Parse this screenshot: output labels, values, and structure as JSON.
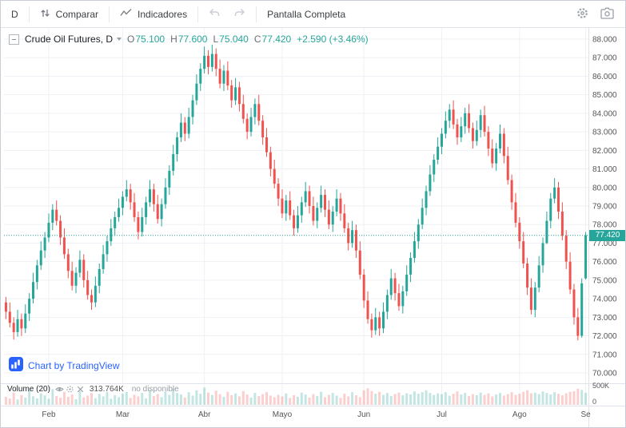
{
  "toolbar": {
    "interval": "D",
    "compare": "Comparar",
    "indicators": "Indicadores",
    "fullscreen": "Pantalla Completa"
  },
  "legend": {
    "title": "Crude Oil Futures, D",
    "open_label": "O",
    "open": "75.100",
    "high_label": "H",
    "high": "77.600",
    "low_label": "L",
    "low": "75.040",
    "close_label": "C",
    "close": "77.420",
    "change": "+2.590 (+3.46%)"
  },
  "attribution": "Chart by TradingView",
  "volume_pane": {
    "title": "Volume (20)",
    "value": "313.764K",
    "note": "no disponible"
  },
  "price_label": "77.420",
  "chart_data": {
    "type": "candlestick",
    "title": "Crude Oil Futures, D",
    "y_min": 70,
    "y_max": 88,
    "y_ticks": [
      88,
      87,
      86,
      85,
      84,
      83,
      82,
      81,
      80,
      79,
      78,
      77,
      76,
      75,
      74,
      73,
      72,
      71,
      70
    ],
    "x_ticks": [
      {
        "label": "Feb",
        "i": 11
      },
      {
        "label": "Mar",
        "i": 30
      },
      {
        "label": "Abr",
        "i": 51
      },
      {
        "label": "Mayo",
        "i": 71
      },
      {
        "label": "Jun",
        "i": 92
      },
      {
        "label": "Jul",
        "i": 112
      },
      {
        "label": "Ago",
        "i": 132
      },
      {
        "label": "Se",
        "i": 149
      }
    ],
    "current_price": 77.42,
    "vol_axis": {
      "max": 500,
      "ticks": [
        {
          "label": "500K",
          "v": 500
        },
        {
          "label": "0",
          "v": 0
        }
      ]
    },
    "colors": {
      "up": "#26a69a",
      "down": "#ef5350",
      "vol_up": "rgba(38,166,154,0.28)",
      "vol_down": "rgba(239,83,80,0.28)",
      "grid": "#eef1f5",
      "axis_text": "#555555",
      "accent": "#2962ff",
      "price_line": "#26a69a"
    },
    "candles": [
      [
        73.8,
        74.1,
        72.9,
        73.3
      ],
      [
        73.3,
        73.8,
        72.45,
        72.7
      ],
      [
        72.7,
        73.0,
        71.8,
        72.2
      ],
      [
        72.2,
        73.4,
        71.95,
        72.9
      ],
      [
        72.9,
        73.2,
        72.0,
        72.4
      ],
      [
        72.4,
        73.7,
        72.15,
        73.2
      ],
      [
        73.2,
        74.3,
        72.8,
        74.0
      ],
      [
        74.0,
        75.4,
        73.75,
        74.9
      ],
      [
        74.9,
        76.1,
        74.5,
        75.8
      ],
      [
        75.8,
        77.1,
        75.55,
        76.6
      ],
      [
        76.6,
        77.6,
        76.2,
        77.3
      ],
      [
        77.3,
        78.6,
        77.05,
        78.1
      ],
      [
        78.1,
        79.1,
        77.7,
        78.8
      ],
      [
        78.8,
        79.3,
        77.95,
        78.2
      ],
      [
        78.2,
        78.5,
        76.9,
        77.3
      ],
      [
        77.3,
        77.8,
        76.15,
        76.4
      ],
      [
        76.4,
        76.7,
        75.1,
        75.5
      ],
      [
        75.5,
        76.0,
        74.45,
        74.7
      ],
      [
        74.7,
        75.7,
        74.3,
        75.4
      ],
      [
        75.4,
        76.6,
        75.15,
        76.1
      ],
      [
        76.1,
        76.4,
        74.6,
        75.0
      ],
      [
        75.0,
        75.5,
        73.95,
        74.2
      ],
      [
        74.2,
        74.5,
        73.4,
        73.8
      ],
      [
        73.8,
        75.2,
        73.55,
        74.7
      ],
      [
        74.7,
        75.9,
        74.3,
        75.6
      ],
      [
        75.6,
        76.9,
        75.35,
        76.4
      ],
      [
        76.4,
        77.4,
        76.0,
        77.1
      ],
      [
        77.1,
        78.3,
        76.85,
        77.8
      ],
      [
        77.8,
        78.7,
        77.4,
        78.4
      ],
      [
        78.4,
        79.4,
        78.15,
        78.9
      ],
      [
        78.9,
        79.8,
        78.5,
        79.5
      ],
      [
        79.5,
        80.4,
        79.25,
        79.9
      ],
      [
        79.9,
        80.2,
        78.8,
        79.2
      ],
      [
        79.2,
        79.7,
        78.15,
        78.4
      ],
      [
        78.4,
        78.7,
        77.2,
        77.6
      ],
      [
        77.6,
        78.9,
        77.35,
        78.4
      ],
      [
        78.4,
        79.5,
        78.0,
        79.2
      ],
      [
        79.2,
        80.4,
        78.95,
        79.9
      ],
      [
        79.9,
        80.2,
        78.7,
        79.1
      ],
      [
        79.1,
        79.6,
        78.05,
        78.3
      ],
      [
        78.3,
        79.4,
        77.9,
        79.1
      ],
      [
        79.1,
        80.5,
        78.85,
        80.0
      ],
      [
        80.0,
        81.2,
        79.6,
        80.9
      ],
      [
        80.9,
        82.3,
        80.65,
        81.8
      ],
      [
        81.8,
        83.0,
        81.4,
        82.7
      ],
      [
        82.7,
        84.0,
        82.45,
        83.5
      ],
      [
        83.5,
        83.8,
        82.5,
        82.9
      ],
      [
        82.9,
        84.3,
        82.65,
        83.8
      ],
      [
        83.8,
        85.0,
        83.4,
        84.7
      ],
      [
        84.7,
        86.1,
        84.45,
        85.6
      ],
      [
        85.6,
        86.7,
        85.2,
        86.4
      ],
      [
        86.4,
        87.6,
        86.15,
        87.1
      ],
      [
        87.1,
        87.4,
        86.1,
        86.5
      ],
      [
        86.5,
        87.7,
        86.25,
        87.2
      ],
      [
        87.2,
        87.5,
        86.0,
        86.4
      ],
      [
        86.4,
        86.9,
        85.35,
        85.6
      ],
      [
        85.6,
        86.6,
        85.2,
        86.3
      ],
      [
        86.3,
        86.8,
        85.25,
        85.5
      ],
      [
        85.5,
        85.8,
        84.3,
        84.7
      ],
      [
        84.7,
        85.9,
        84.45,
        85.4
      ],
      [
        85.4,
        85.7,
        84.1,
        84.5
      ],
      [
        84.5,
        85.0,
        83.45,
        83.7
      ],
      [
        83.7,
        84.0,
        82.6,
        83.0
      ],
      [
        83.0,
        84.3,
        82.75,
        83.8
      ],
      [
        83.8,
        84.8,
        83.4,
        84.5
      ],
      [
        84.5,
        85.0,
        83.35,
        83.6
      ],
      [
        83.6,
        83.9,
        82.3,
        82.7
      ],
      [
        82.7,
        83.2,
        81.65,
        81.9
      ],
      [
        81.9,
        82.2,
        80.6,
        81.0
      ],
      [
        81.0,
        81.5,
        79.95,
        80.2
      ],
      [
        80.2,
        80.5,
        79.0,
        79.4
      ],
      [
        79.4,
        79.9,
        78.35,
        78.6
      ],
      [
        78.6,
        79.6,
        78.2,
        79.3
      ],
      [
        79.3,
        79.8,
        78.25,
        78.5
      ],
      [
        78.5,
        78.8,
        77.4,
        77.8
      ],
      [
        77.8,
        79.0,
        77.55,
        78.5
      ],
      [
        78.5,
        79.5,
        78.1,
        79.2
      ],
      [
        79.2,
        80.3,
        78.95,
        79.8
      ],
      [
        79.8,
        80.1,
        78.6,
        79.0
      ],
      [
        79.0,
        79.5,
        77.95,
        78.2
      ],
      [
        78.2,
        79.2,
        77.8,
        78.9
      ],
      [
        78.9,
        80.1,
        78.65,
        79.6
      ],
      [
        79.6,
        79.9,
        78.4,
        78.8
      ],
      [
        78.8,
        79.3,
        77.75,
        78.0
      ],
      [
        78.0,
        79.0,
        77.6,
        78.7
      ],
      [
        78.7,
        79.9,
        78.45,
        79.4
      ],
      [
        79.4,
        79.7,
        78.2,
        78.6
      ],
      [
        78.6,
        79.1,
        77.55,
        77.8
      ],
      [
        77.8,
        78.1,
        76.6,
        77.0
      ],
      [
        77.0,
        78.2,
        76.75,
        77.7
      ],
      [
        77.7,
        78.0,
        76.2,
        76.6
      ],
      [
        76.6,
        77.1,
        75.05,
        75.3
      ],
      [
        75.3,
        75.6,
        73.5,
        73.9
      ],
      [
        73.9,
        74.4,
        72.65,
        72.9
      ],
      [
        72.9,
        73.2,
        71.9,
        72.3
      ],
      [
        72.3,
        73.5,
        72.05,
        73.0
      ],
      [
        73.0,
        73.3,
        72.0,
        72.4
      ],
      [
        72.4,
        73.8,
        72.15,
        73.3
      ],
      [
        73.3,
        74.5,
        72.9,
        74.2
      ],
      [
        74.2,
        75.6,
        73.95,
        75.1
      ],
      [
        75.1,
        75.4,
        73.9,
        74.3
      ],
      [
        74.3,
        74.8,
        73.35,
        73.6
      ],
      [
        73.6,
        74.7,
        73.2,
        74.4
      ],
      [
        74.4,
        75.8,
        74.15,
        75.3
      ],
      [
        75.3,
        76.5,
        74.9,
        76.2
      ],
      [
        76.2,
        77.6,
        75.95,
        77.1
      ],
      [
        77.1,
        78.3,
        76.7,
        78.0
      ],
      [
        78.0,
        79.4,
        77.75,
        78.9
      ],
      [
        78.9,
        80.1,
        78.5,
        79.8
      ],
      [
        79.8,
        81.2,
        79.55,
        80.7
      ],
      [
        80.7,
        81.8,
        80.3,
        81.5
      ],
      [
        81.5,
        82.7,
        81.25,
        82.2
      ],
      [
        82.2,
        83.2,
        81.8,
        82.9
      ],
      [
        82.9,
        84.1,
        82.65,
        83.6
      ],
      [
        83.6,
        84.5,
        83.2,
        84.2
      ],
      [
        84.2,
        84.7,
        83.15,
        83.4
      ],
      [
        83.4,
        83.7,
        82.3,
        82.7
      ],
      [
        82.7,
        83.8,
        82.45,
        83.3
      ],
      [
        83.3,
        84.3,
        82.9,
        84.0
      ],
      [
        84.0,
        84.5,
        82.95,
        83.2
      ],
      [
        83.2,
        83.5,
        82.1,
        82.5
      ],
      [
        82.5,
        83.6,
        82.25,
        83.1
      ],
      [
        83.1,
        84.2,
        82.7,
        83.9
      ],
      [
        83.9,
        84.4,
        82.75,
        83.0
      ],
      [
        83.0,
        83.3,
        81.7,
        82.1
      ],
      [
        82.1,
        82.6,
        81.05,
        81.3
      ],
      [
        81.3,
        82.4,
        80.9,
        82.1
      ],
      [
        82.1,
        83.4,
        81.85,
        82.9
      ],
      [
        82.9,
        83.2,
        81.3,
        81.7
      ],
      [
        81.7,
        82.2,
        80.15,
        80.4
      ],
      [
        80.4,
        80.7,
        78.8,
        79.2
      ],
      [
        79.2,
        79.7,
        77.85,
        78.1
      ],
      [
        78.1,
        78.4,
        76.7,
        77.1
      ],
      [
        77.1,
        77.6,
        75.65,
        75.9
      ],
      [
        75.9,
        76.2,
        74.2,
        74.6
      ],
      [
        74.6,
        75.1,
        73.15,
        73.4
      ],
      [
        73.4,
        74.9,
        73.0,
        74.6
      ],
      [
        74.6,
        76.3,
        74.35,
        75.8
      ],
      [
        75.8,
        77.3,
        75.4,
        77.0
      ],
      [
        77.0,
        78.7,
        76.95,
        78.2
      ],
      [
        78.2,
        79.7,
        77.8,
        79.4
      ],
      [
        79.4,
        80.5,
        79.15,
        80.0
      ],
      [
        80.0,
        80.3,
        78.3,
        78.7
      ],
      [
        78.7,
        79.2,
        77.15,
        77.4
      ],
      [
        77.4,
        77.7,
        75.6,
        76.0
      ],
      [
        76.0,
        76.5,
        74.25,
        74.5
      ],
      [
        74.5,
        74.8,
        72.6,
        73.0
      ],
      [
        73.0,
        73.5,
        71.75,
        72.0
      ],
      [
        72.0,
        75.1,
        71.9,
        74.83
      ],
      [
        75.1,
        77.6,
        75.04,
        77.42
      ]
    ],
    "volumes": [
      210,
      165,
      320,
      140,
      255,
      190,
      380,
      225,
      170,
      300,
      245,
      160,
      410,
      230,
      185,
      340,
      210,
      270,
      150,
      360,
      195,
      240,
      310,
      175,
      285,
      220,
      330,
      160,
      250,
      200,
      290,
      340,
      180,
      260,
      220,
      310,
      170,
      390,
      230,
      280,
      200,
      350,
      260,
      420,
      310,
      270,
      190,
      330,
      240,
      380,
      290,
      450,
      320,
      260,
      370,
      280,
      210,
      340,
      250,
      300,
      220,
      360,
      270,
      190,
      310,
      230,
      280,
      330,
      240,
      200,
      260,
      220,
      300,
      180,
      250,
      210,
      320,
      270,
      190,
      280,
      230,
      340,
      200,
      260,
      310,
      240,
      180,
      290,
      220,
      330,
      250,
      200,
      380,
      430,
      360,
      290,
      340,
      260,
      310,
      230,
      280,
      320,
      250,
      300,
      270,
      350,
      290,
      330,
      380,
      310,
      260,
      300,
      280,
      330,
      240,
      290,
      350,
      270,
      310,
      230,
      280,
      250,
      320,
      260,
      300,
      220,
      270,
      310,
      240,
      280,
      330,
      260,
      290,
      340,
      380,
      300,
      320,
      280,
      350,
      310,
      270,
      330,
      290,
      250,
      300,
      340,
      360,
      420,
      390,
      314
    ]
  }
}
